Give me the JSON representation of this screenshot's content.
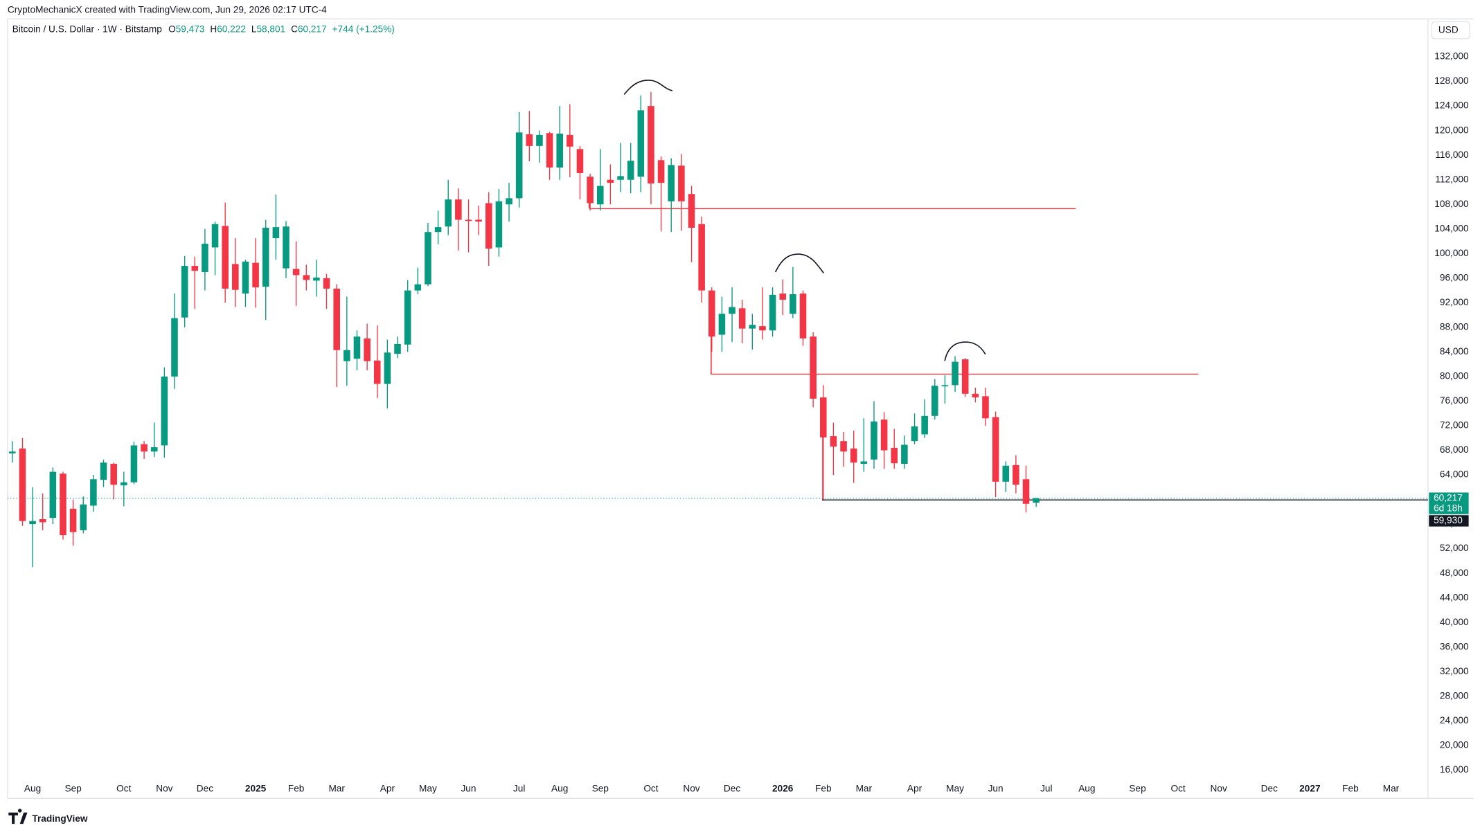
{
  "header": {
    "credit": "CryptoMechanicX created with TradingView.com, Jun 29, 2026 02:17 UTC-4",
    "currency": "USD",
    "brand": "TradingView"
  },
  "legend": {
    "symbol": "Bitcoin / U.S. Dollar · 1W · Bitstamp",
    "items": [
      {
        "key": "O",
        "value": "59,473"
      },
      {
        "key": "H",
        "value": "60,222"
      },
      {
        "key": "L",
        "value": "58,801"
      },
      {
        "key": "C",
        "value": "60,217"
      }
    ],
    "change": "+744 (+1.25%)"
  },
  "chart_data": {
    "type": "candlestick",
    "up_color": "#089981",
    "down_color": "#f23645",
    "grid": false,
    "open": [
      67500,
      68300,
      56000,
      56800,
      57000,
      64200,
      58500,
      55000,
      59000,
      63200,
      65800,
      62300,
      62800,
      69000,
      67800,
      68800,
      80000,
      89600,
      98000,
      97000,
      101000,
      104500,
      98300,
      93500,
      98500,
      94600,
      102500,
      97600,
      97500,
      96500,
      95600,
      96000,
      94300,
      82500,
      82900,
      86200,
      82600,
      78800,
      83700,
      85200,
      94000,
      95000,
      103500,
      104400,
      108800,
      105500,
      105500,
      108200,
      101000,
      108000,
      109000,
      119400,
      117500,
      119600,
      114000,
      119300,
      117000,
      112500,
      108000,
      112000,
      112000,
      112000,
      112500,
      124000,
      115200,
      108500,
      114300,
      109700,
      104800,
      94000,
      86800,
      90200,
      91100,
      87800,
      88200,
      87500,
      93500,
      90200,
      93500,
      86500,
      76600,
      70300,
      69500,
      68300,
      65800,
      66500,
      73000,
      68400,
      65800,
      69500,
      70600,
      73600,
      78400,
      78600,
      82800,
      77200,
      76800,
      73400,
      62900,
      65600,
      63300,
      59473
    ],
    "high": [
      69500,
      70000,
      62000,
      61000,
      65200,
      64500,
      60000,
      60500,
      64000,
      66500,
      66000,
      64500,
      69400,
      69500,
      72500,
      81500,
      93500,
      99600,
      99500,
      104000,
      105200,
      108300,
      102500,
      99000,
      102500,
      105500,
      109600,
      105300,
      102000,
      98200,
      99000,
      96700,
      95000,
      93000,
      87500,
      88600,
      88300,
      86000,
      86500,
      95700,
      97700,
      105000,
      107000,
      112000,
      110600,
      108800,
      107800,
      110000,
      110500,
      111500,
      123000,
      123200,
      120000,
      119800,
      124000,
      124300,
      117500,
      113000,
      117000,
      114500,
      118000,
      118000,
      125700,
      126300,
      115800,
      115500,
      116200,
      111000,
      106000,
      94500,
      93000,
      94500,
      92500,
      90200,
      94500,
      94500,
      95800,
      97800,
      94000,
      87200,
      78600,
      72500,
      71000,
      71200,
      73200,
      76000,
      74200,
      71500,
      70400,
      74000,
      76300,
      79600,
      80200,
      83300,
      83000,
      78200,
      78200,
      74300,
      66200,
      67200,
      65500,
      60222
    ],
    "low": [
      66000,
      55700,
      49000,
      55000,
      56000,
      53500,
      52500,
      54500,
      58000,
      62000,
      60000,
      58900,
      62500,
      66600,
      66900,
      66800,
      78000,
      88000,
      91000,
      94000,
      96500,
      92000,
      91300,
      91300,
      91200,
      89200,
      99000,
      96000,
      91500,
      94000,
      93000,
      91000,
      78300,
      78500,
      81000,
      81000,
      76500,
      74800,
      83000,
      84000,
      93400,
      94700,
      101500,
      103000,
      100500,
      100200,
      103000,
      98000,
      99500,
      105200,
      107500,
      115000,
      114800,
      112000,
      112000,
      112400,
      108800,
      107000,
      107000,
      108000,
      110000,
      109800,
      110000,
      108000,
      103600,
      103500,
      103700,
      98600,
      92000,
      84000,
      84000,
      85600,
      85400,
      84400,
      86000,
      86500,
      90000,
      89500,
      85000,
      75000,
      60000,
      64000,
      65300,
      62700,
      64500,
      65000,
      65000,
      65000,
      65000,
      69000,
      70000,
      73000,
      75600,
      77500,
      76700,
      75800,
      72000,
      60400,
      61200,
      61000,
      57900,
      58801
    ],
    "close": [
      67800,
      56500,
      56500,
      56300,
      64500,
      54200,
      54700,
      59200,
      63300,
      66000,
      62400,
      62800,
      68800,
      67800,
      68500,
      80000,
      89500,
      98000,
      97200,
      101600,
      104800,
      94300,
      94100,
      98700,
      94500,
      104200,
      104300,
      104400,
      96500,
      95700,
      96100,
      94300,
      84300,
      84300,
      86500,
      82500,
      78800,
      83900,
      85300,
      94000,
      95000,
      103500,
      104300,
      108800,
      105500,
      105300,
      105200,
      100800,
      108500,
      109000,
      119700,
      117500,
      119300,
      114000,
      119500,
      117400,
      113100,
      108200,
      111000,
      111500,
      112600,
      115100,
      123300,
      111400,
      111500,
      114400,
      108500,
      104200,
      94000,
      86500,
      90200,
      91300,
      87800,
      88400,
      87500,
      93300,
      92500,
      93400,
      86200,
      76400,
      70100,
      68600,
      67800,
      66000,
      66200,
      72700,
      68000,
      65900,
      68900,
      71900,
      73600,
      78500,
      78600,
      82400,
      77200,
      76600,
      73200,
      62900,
      65500,
      62400,
      59300,
      60217
    ],
    "xlim": [
      -0.47,
      139.65
    ],
    "xticks": [
      {
        "value": 2,
        "label": "Aug"
      },
      {
        "value": 6,
        "label": "Sep"
      },
      {
        "value": 11,
        "label": "Oct"
      },
      {
        "value": 15,
        "label": "Nov"
      },
      {
        "value": 19,
        "label": "Dec"
      },
      {
        "value": 24,
        "label": "2025"
      },
      {
        "value": 28,
        "label": "Feb"
      },
      {
        "value": 32,
        "label": "Mar"
      },
      {
        "value": 37,
        "label": "Apr"
      },
      {
        "value": 41,
        "label": "May"
      },
      {
        "value": 45,
        "label": "Jun"
      },
      {
        "value": 50,
        "label": "Jul"
      },
      {
        "value": 54,
        "label": "Aug"
      },
      {
        "value": 58,
        "label": "Sep"
      },
      {
        "value": 63,
        "label": "Oct"
      },
      {
        "value": 67,
        "label": "Nov"
      },
      {
        "value": 71,
        "label": "Dec"
      },
      {
        "value": 76,
        "label": "2026"
      },
      {
        "value": 80,
        "label": "Feb"
      },
      {
        "value": 84,
        "label": "Mar"
      },
      {
        "value": 89,
        "label": "Apr"
      },
      {
        "value": 93,
        "label": "May"
      },
      {
        "value": 97,
        "label": "Jun"
      },
      {
        "value": 102,
        "label": "Jul"
      },
      {
        "value": 106,
        "label": "Aug"
      },
      {
        "value": 111,
        "label": "Sep"
      },
      {
        "value": 115,
        "label": "Oct"
      },
      {
        "value": 119,
        "label": "Nov"
      },
      {
        "value": 124,
        "label": "Dec"
      },
      {
        "value": 128,
        "label": "2027"
      },
      {
        "value": 132,
        "label": "Feb"
      },
      {
        "value": 136,
        "label": "Mar"
      }
    ],
    "ylim": [
      11390,
      138170
    ],
    "yticks": [
      {
        "value": 16000,
        "label": "16,000"
      },
      {
        "value": 20000,
        "label": "20,000"
      },
      {
        "value": 24000,
        "label": "24,000"
      },
      {
        "value": 28000,
        "label": "28,000"
      },
      {
        "value": 32000,
        "label": "32,000"
      },
      {
        "value": 36000,
        "label": "36,000"
      },
      {
        "value": 40000,
        "label": "40,000"
      },
      {
        "value": 44000,
        "label": "44,000"
      },
      {
        "value": 48000,
        "label": "48,000"
      },
      {
        "value": 52000,
        "label": "52,000"
      },
      {
        "value": 56000,
        "label": "56,000"
      },
      {
        "value": 60000,
        "label": "60,000"
      },
      {
        "value": 64000,
        "label": "64,000"
      },
      {
        "value": 68000,
        "label": "68,000"
      },
      {
        "value": 72000,
        "label": "72,000"
      },
      {
        "value": 76000,
        "label": "76,000"
      },
      {
        "value": 80000,
        "label": "80,000"
      },
      {
        "value": 84000,
        "label": "84,000"
      },
      {
        "value": 88000,
        "label": "88,000"
      },
      {
        "value": 92000,
        "label": "92,000"
      },
      {
        "value": 96000,
        "label": "96,000"
      },
      {
        "value": 100000,
        "label": "100,000"
      },
      {
        "value": 104000,
        "label": "104,000"
      },
      {
        "value": 108000,
        "label": "108,000"
      },
      {
        "value": 112000,
        "label": "112,000"
      },
      {
        "value": 116000,
        "label": "116,000"
      },
      {
        "value": 120000,
        "label": "120,000"
      },
      {
        "value": 124000,
        "label": "124,000"
      },
      {
        "value": 128000,
        "label": "128,000"
      },
      {
        "value": 132000,
        "label": "132,000"
      }
    ],
    "lines": [
      {
        "value": 107300,
        "color": "#f23645",
        "start": 56.9,
        "end": 104.9
      },
      {
        "value": 80400,
        "color": "#f23645",
        "start": 68.9,
        "end": 117
      },
      {
        "value": 59930,
        "color": "#131722",
        "start": 79.9,
        "end": 139.65
      }
    ],
    "price_labels": [
      {
        "value": 60217,
        "label": "60,217",
        "color": "#089981",
        "countdown": "6d 18h"
      },
      {
        "value": 59930,
        "label": "59,930",
        "color": "#131722"
      }
    ]
  }
}
